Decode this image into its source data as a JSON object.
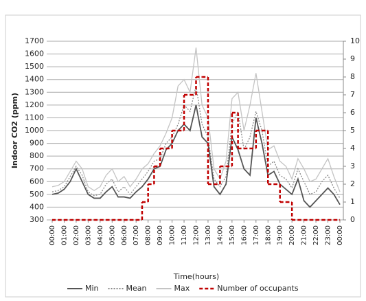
{
  "chart_data": {
    "type": "line",
    "y_label": "Indoor CO2 (ppm)",
    "x_label": "Time(hours)",
    "x": [
      0,
      0.5,
      1,
      1.5,
      2,
      2.5,
      3,
      3.5,
      4,
      4.5,
      5,
      5.5,
      6,
      6.5,
      7,
      7.5,
      8,
      8.5,
      9,
      9.5,
      10,
      10.5,
      11,
      11.5,
      12,
      12.5,
      13,
      13.5,
      14,
      14.5,
      15,
      15.5,
      16,
      16.5,
      17,
      17.5,
      18,
      18.5,
      19,
      19.5,
      20,
      20.5,
      21,
      21.5,
      22,
      22.5,
      23,
      23.5,
      24
    ],
    "xlim": [
      0,
      24
    ],
    "xticks": [
      {
        "value": 0,
        "label": "00:00"
      },
      {
        "value": 1,
        "label": "01:00"
      },
      {
        "value": 2,
        "label": "02:00"
      },
      {
        "value": 3,
        "label": "03:00"
      },
      {
        "value": 4,
        "label": "04:00"
      },
      {
        "value": 5,
        "label": "05:00"
      },
      {
        "value": 6,
        "label": "06:00"
      },
      {
        "value": 7,
        "label": "07:00"
      },
      {
        "value": 8,
        "label": "08:00"
      },
      {
        "value": 9,
        "label": "09:00"
      },
      {
        "value": 10,
        "label": "10:00"
      },
      {
        "value": 11,
        "label": "11:00"
      },
      {
        "value": 12,
        "label": "12:00"
      },
      {
        "value": 13,
        "label": "13:00"
      },
      {
        "value": 14,
        "label": "14:00"
      },
      {
        "value": 15,
        "label": "15:00"
      },
      {
        "value": 16,
        "label": "16:00"
      },
      {
        "value": 17,
        "label": "17:00"
      },
      {
        "value": 18,
        "label": "18:00"
      },
      {
        "value": 19,
        "label": "19:00"
      },
      {
        "value": 20,
        "label": "20:00"
      },
      {
        "value": 21,
        "label": "21:00"
      },
      {
        "value": 22,
        "label": "22:00"
      },
      {
        "value": 23,
        "label": "23:00"
      },
      {
        "value": 24,
        "label": "00:00"
      }
    ],
    "ylim": [
      300,
      1700
    ],
    "yticks": [
      300,
      400,
      500,
      600,
      700,
      800,
      900,
      1000,
      1100,
      1200,
      1300,
      1400,
      1500,
      1600,
      1700
    ],
    "y2lim": [
      0,
      10
    ],
    "y2ticks": [
      0,
      1,
      2,
      3,
      4,
      5,
      6,
      7,
      8,
      9,
      10
    ],
    "grid": true,
    "series": [
      {
        "name": "Min",
        "color": "#555555",
        "style": "solid",
        "values": [
          500,
          510,
          540,
          600,
          700,
          600,
          500,
          470,
          470,
          520,
          560,
          480,
          480,
          470,
          520,
          560,
          620,
          700,
          720,
          850,
          900,
          1000,
          1050,
          1000,
          1200,
          950,
          900,
          560,
          500,
          580,
          950,
          850,
          700,
          650,
          1100,
          900,
          650,
          680,
          580,
          540,
          500,
          620,
          450,
          400,
          450,
          500,
          550,
          500,
          420
        ]
      },
      {
        "name": "Mean",
        "color": "#888888",
        "style": "dotted",
        "values": [
          520,
          530,
          560,
          640,
          720,
          650,
          520,
          490,
          500,
          580,
          620,
          520,
          560,
          500,
          560,
          620,
          680,
          760,
          780,
          900,
          950,
          1050,
          1200,
          1150,
          1350,
          1050,
          950,
          620,
          560,
          640,
          1050,
          1150,
          850,
          950,
          1150,
          1000,
          720,
          760,
          650,
          620,
          550,
          700,
          600,
          500,
          520,
          600,
          650,
          550,
          470
        ]
      },
      {
        "name": "Max",
        "color": "#c4c4c4",
        "style": "solid",
        "values": [
          560,
          570,
          600,
          680,
          760,
          700,
          560,
          530,
          560,
          650,
          700,
          600,
          640,
          560,
          620,
          700,
          740,
          820,
          880,
          980,
          1100,
          1350,
          1400,
          1300,
          1650,
          1200,
          1100,
          700,
          620,
          760,
          1250,
          1300,
          1000,
          1200,
          1450,
          1150,
          850,
          880,
          760,
          720,
          620,
          780,
          700,
          600,
          620,
          700,
          780,
          640,
          520
        ]
      },
      {
        "name": "Number of occupants",
        "color": "#c00000",
        "style": "dashed",
        "axis": "y2",
        "step": true,
        "values": [
          0,
          0,
          0,
          0,
          0,
          0,
          0,
          0,
          0,
          0,
          0,
          0,
          0,
          0,
          0,
          1,
          2,
          3,
          4,
          4,
          5,
          5,
          7,
          7,
          8,
          8,
          2,
          2,
          3,
          3,
          6,
          4,
          4,
          4,
          5,
          5,
          2,
          2,
          1,
          1,
          0,
          0,
          0,
          0,
          0,
          0,
          0,
          0,
          0
        ]
      }
    ]
  }
}
